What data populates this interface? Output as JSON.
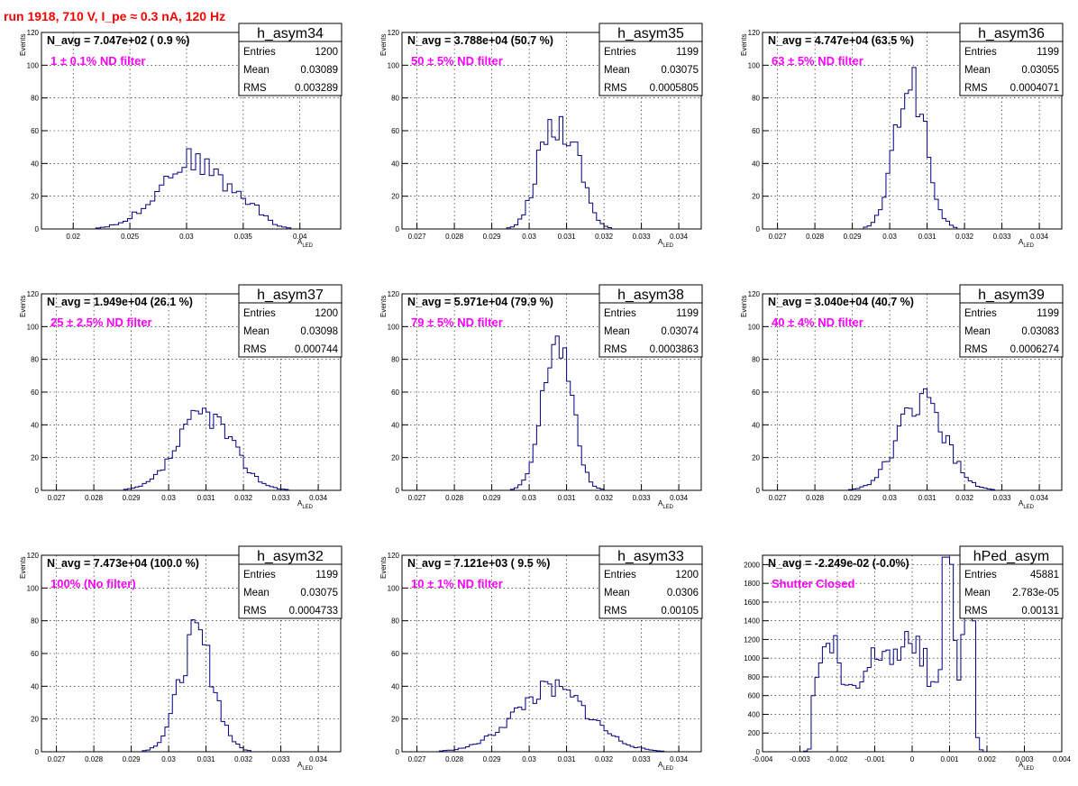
{
  "run_title": "run 1918,   710 V, I_pe ≈ 0.3 nA, 120 Hz",
  "stat_labels": {
    "entries": "Entries",
    "mean": "Mean",
    "rms": "RMS"
  },
  "colors": {
    "title": "#ff0000",
    "filter": "#ff00ff",
    "hist": "#000080"
  },
  "chart_data": [
    {
      "type": "bar",
      "name": "h_asym34",
      "navg": "N_avg = 7.047e+02 ( 0.9 %)",
      "filter": "1 ± 0.1% ND filter",
      "entries": "1200",
      "mean": "0.03089",
      "rms": "0.003289",
      "xlabel": "A",
      "xlabel_sub": "LED",
      "ylabel": "Events",
      "xlim": [
        0.0172,
        0.0436
      ],
      "ylim": [
        0,
        120
      ],
      "xticks": [
        0.02,
        0.025,
        0.03,
        0.035,
        0.04
      ],
      "xtick_labels": [
        "0.02",
        "0.025",
        "0.03",
        "0.035",
        "0.04"
      ],
      "yticks": [
        0,
        20,
        40,
        60,
        80,
        100,
        120
      ],
      "profile": {
        "centers": [
          0.0305,
          0.0355
        ],
        "sigmas": [
          0.0029,
          0.0012
        ],
        "amps": [
          42,
          8
        ],
        "step": 0.0004,
        "seed": 34
      }
    },
    {
      "type": "bar",
      "name": "h_asym35",
      "navg": "N_avg = 3.788e+04 (50.7 %)",
      "filter": "50 ± 5% ND filter",
      "entries": "1199",
      "mean": "0.03075",
      "rms": "0.0005805",
      "xlabel": "A",
      "xlabel_sub": "LED",
      "ylabel": "Events",
      "xlim": [
        0.0266,
        0.0346
      ],
      "ylim": [
        0,
        120
      ],
      "xticks": [
        0.027,
        0.028,
        0.029,
        0.03,
        0.031,
        0.032,
        0.033,
        0.034
      ],
      "xtick_labels": [
        "0.027",
        "0.028",
        "0.029",
        "0.03",
        "0.031",
        "0.032",
        "0.033",
        "0.034"
      ],
      "yticks": [
        0,
        20,
        40,
        60,
        80,
        100,
        120
      ],
      "profile": {
        "centers": [
          0.0305,
          0.03115
        ],
        "sigmas": [
          0.00035,
          0.00035
        ],
        "amps": [
          52,
          45
        ],
        "step": 0.0001,
        "seed": 35
      }
    },
    {
      "type": "bar",
      "name": "h_asym36",
      "navg": "N_avg = 4.747e+04 (63.5 %)",
      "filter": "63 ± 5% ND filter",
      "entries": "1199",
      "mean": "0.03055",
      "rms": "0.0004071",
      "xlabel": "A",
      "xlabel_sub": "LED",
      "ylabel": "Events",
      "xlim": [
        0.0266,
        0.0346
      ],
      "ylim": [
        0,
        120
      ],
      "xticks": [
        0.027,
        0.028,
        0.029,
        0.03,
        0.031,
        0.032,
        0.033,
        0.034
      ],
      "xtick_labels": [
        "0.027",
        "0.028",
        "0.029",
        "0.03",
        "0.031",
        "0.032",
        "0.033",
        "0.034"
      ],
      "yticks": [
        0,
        20,
        40,
        60,
        80,
        100,
        120
      ],
      "profile": {
        "centers": [
          0.03055
        ],
        "sigmas": [
          0.0004
        ],
        "amps": [
          92
        ],
        "step": 0.0001,
        "seed": 36
      }
    },
    {
      "type": "bar",
      "name": "h_asym37",
      "navg": "N_avg = 1.949e+04 (26.1 %)",
      "filter": "25 ± 2.5% ND filter",
      "entries": "1200",
      "mean": "0.03098",
      "rms": "0.000744",
      "xlabel": "A",
      "xlabel_sub": "LED",
      "ylabel": "Events",
      "xlim": [
        0.0266,
        0.0346
      ],
      "ylim": [
        0,
        120
      ],
      "xticks": [
        0.027,
        0.028,
        0.029,
        0.03,
        0.031,
        0.032,
        0.033,
        0.034
      ],
      "xtick_labels": [
        "0.027",
        "0.028",
        "0.029",
        "0.03",
        "0.031",
        "0.032",
        "0.033",
        "0.034"
      ],
      "yticks": [
        0,
        20,
        40,
        60,
        80,
        100,
        120
      ],
      "profile": {
        "centers": [
          0.03098
        ],
        "sigmas": [
          0.00072
        ],
        "amps": [
          47
        ],
        "step": 0.0001,
        "seed": 37
      }
    },
    {
      "type": "bar",
      "name": "h_asym38",
      "navg": "N_avg = 5.971e+04 (79.9 %)",
      "filter": "79 ± 5% ND filter",
      "entries": "1199",
      "mean": "0.03074",
      "rms": "0.0003863",
      "xlabel": "A",
      "xlabel_sub": "LED",
      "ylabel": "Events",
      "xlim": [
        0.0266,
        0.0346
      ],
      "ylim": [
        0,
        120
      ],
      "xticks": [
        0.027,
        0.028,
        0.029,
        0.03,
        0.031,
        0.032,
        0.033,
        0.034
      ],
      "xtick_labels": [
        "0.027",
        "0.028",
        "0.029",
        "0.03",
        "0.031",
        "0.032",
        "0.033",
        "0.034"
      ],
      "yticks": [
        0,
        20,
        40,
        60,
        80,
        100,
        120
      ],
      "profile": {
        "centers": [
          0.03075
        ],
        "sigmas": [
          0.00038
        ],
        "amps": [
          94
        ],
        "step": 0.0001,
        "seed": 38
      }
    },
    {
      "type": "bar",
      "name": "h_asym39",
      "navg": "N_avg = 3.040e+04 (40.7 %)",
      "filter": "40 ± 4% ND filter",
      "entries": "1199",
      "mean": "0.03083",
      "rms": "0.0006274",
      "xlabel": "A",
      "xlabel_sub": "LED",
      "ylabel": "Events",
      "xlim": [
        0.0266,
        0.0346
      ],
      "ylim": [
        0,
        120
      ],
      "xticks": [
        0.027,
        0.028,
        0.029,
        0.03,
        0.031,
        0.032,
        0.033,
        0.034
      ],
      "xtick_labels": [
        "0.027",
        "0.028",
        "0.029",
        "0.03",
        "0.031",
        "0.032",
        "0.033",
        "0.034"
      ],
      "yticks": [
        0,
        20,
        40,
        60,
        80,
        100,
        120
      ],
      "profile": {
        "centers": [
          0.03085
        ],
        "sigmas": [
          0.00062
        ],
        "amps": [
          55
        ],
        "step": 0.0001,
        "seed": 39
      }
    },
    {
      "type": "bar",
      "name": "h_asym32",
      "navg": "N_avg = 7.473e+04 (100.0 %)",
      "filter": "100% (No filter)",
      "entries": "1199",
      "mean": "0.03075",
      "rms": "0.0004733",
      "xlabel": "A",
      "xlabel_sub": "LED",
      "ylabel": "Events",
      "xlim": [
        0.0266,
        0.0346
      ],
      "ylim": [
        0,
        120
      ],
      "xticks": [
        0.027,
        0.028,
        0.029,
        0.03,
        0.031,
        0.032,
        0.033,
        0.034
      ],
      "xtick_labels": [
        "0.027",
        "0.028",
        "0.029",
        "0.03",
        "0.031",
        "0.032",
        "0.033",
        "0.034"
      ],
      "yticks": [
        0,
        20,
        40,
        60,
        80,
        100,
        120
      ],
      "profile": {
        "centers": [
          0.03075
        ],
        "sigmas": [
          0.00046
        ],
        "amps": [
          70
        ],
        "step": 0.0001,
        "seed": 32
      }
    },
    {
      "type": "bar",
      "name": "h_asym33",
      "navg": "N_avg = 7.121e+03 ( 9.5 %)",
      "filter": "10 ± 1% ND filter",
      "entries": "1200",
      "mean": "0.0306",
      "rms": "0.00105",
      "xlabel": "A",
      "xlabel_sub": "LED",
      "ylabel": "Events",
      "xlim": [
        0.0266,
        0.0346
      ],
      "ylim": [
        0,
        120
      ],
      "xticks": [
        0.027,
        0.028,
        0.029,
        0.03,
        0.031,
        0.032,
        0.033,
        0.034
      ],
      "xtick_labels": [
        "0.027",
        "0.028",
        "0.029",
        "0.03",
        "0.031",
        "0.032",
        "0.033",
        "0.034"
      ],
      "yticks": [
        0,
        20,
        40,
        60,
        80,
        100,
        120
      ],
      "profile": {
        "centers": [
          0.0306
        ],
        "sigmas": [
          0.001
        ],
        "amps": [
          38
        ],
        "step": 0.0001,
        "seed": 33
      }
    },
    {
      "type": "bar",
      "name": "hPed_asym",
      "navg": "N_avg = -2.249e-02 (-0.0%)",
      "filter": "Shutter Closed",
      "entries": "45881",
      "mean": "2.783e-05",
      "rms": "0.00131",
      "xlabel": "A",
      "xlabel_sub": "LED",
      "ylabel": "",
      "xlim": [
        -0.004,
        0.004
      ],
      "ylim": [
        0,
        2100
      ],
      "xticks": [
        -0.004,
        -0.003,
        -0.002,
        -0.001,
        0,
        0.001,
        0.002,
        0.003,
        0.004
      ],
      "xtick_labels": [
        "-0.004",
        "-0.003",
        "-0.002",
        "-0.001",
        "0",
        "0.001",
        "0.002",
        "0.003",
        "0.004"
      ],
      "yticks": [
        0,
        200,
        400,
        600,
        800,
        1000,
        1200,
        1400,
        1600,
        1800,
        2000
      ],
      "profile": {
        "centers": [
          -0.0022,
          -0.00075,
          0.0001,
          0.00095,
          0.0015
        ],
        "sigmas": [
          0.00022,
          0.00045,
          0.00025,
          0.00012,
          0.00012
        ],
        "amps": [
          700,
          620,
          600,
          1800,
          1450
        ],
        "base": 550,
        "base_lo": -0.0027,
        "base_hi": 0.0017,
        "step": 0.0001,
        "seed": 40
      }
    }
  ]
}
